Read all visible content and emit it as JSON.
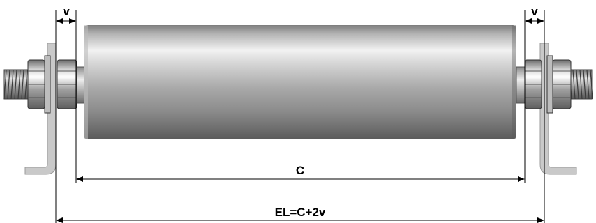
{
  "labels": {
    "v_left": "v",
    "v_right": "v",
    "c": "C",
    "el": "EL=C+2v"
  }
}
